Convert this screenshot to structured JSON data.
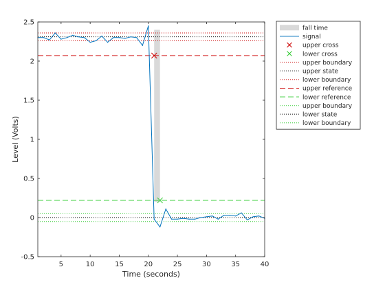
{
  "chart_data": {
    "type": "line",
    "title": "",
    "xlabel": "Time (seconds)",
    "ylabel": "Level (Volts)",
    "xlim": [
      1,
      40
    ],
    "ylim": [
      -0.5,
      2.5
    ],
    "xticks": [
      5,
      10,
      15,
      20,
      25,
      30,
      35,
      40
    ],
    "yticks": [
      -0.5,
      0,
      0.5,
      1,
      1.5,
      2,
      2.5
    ],
    "ytick_labels": [
      "-0.5",
      "0",
      "0.5",
      "1",
      "1.5",
      "2",
      "2.5"
    ],
    "grid": false,
    "legend_position": "outside-right",
    "series": [
      {
        "name": "signal",
        "color": "#0072bd",
        "x": [
          1,
          2,
          3,
          4,
          5,
          6,
          7,
          8,
          9,
          10,
          11,
          12,
          13,
          14,
          15,
          16,
          17,
          18,
          19,
          20,
          21,
          22,
          23,
          24,
          25,
          26,
          27,
          28,
          29,
          30,
          31,
          32,
          33,
          34,
          35,
          36,
          37,
          38,
          39,
          40
        ],
        "y": [
          2.3,
          2.3,
          2.27,
          2.36,
          2.28,
          2.3,
          2.33,
          2.31,
          2.3,
          2.24,
          2.26,
          2.32,
          2.24,
          2.3,
          2.3,
          2.29,
          2.31,
          2.3,
          2.2,
          2.45,
          -0.02,
          -0.12,
          0.11,
          -0.02,
          -0.02,
          -0.01,
          -0.02,
          -0.02,
          0.0,
          0.01,
          0.02,
          -0.02,
          0.03,
          0.03,
          0.02,
          0.06,
          -0.03,
          0.01,
          0.02,
          -0.01
        ]
      }
    ],
    "fall_time": {
      "name": "fall time",
      "x_start": 21.0,
      "x_end": 22.0,
      "color": "#d9d9d9"
    },
    "markers": [
      {
        "name": "upper cross",
        "symbol": "x",
        "color": "#cc0000",
        "x": 21.0,
        "y": 2.07
      },
      {
        "name": "lower cross",
        "symbol": "x",
        "color": "#33cc33",
        "x": 22.0,
        "y": 0.22
      }
    ],
    "reference_lines": [
      {
        "name": "upper boundary",
        "y": 2.36,
        "style": "dotted",
        "color": "#cc0000"
      },
      {
        "name": "upper state",
        "y": 2.31,
        "style": "dotted",
        "color": "#000000"
      },
      {
        "name": "lower boundary",
        "y": 2.26,
        "style": "dotted",
        "color": "#cc0000"
      },
      {
        "name": "upper reference",
        "y": 2.07,
        "style": "dashed",
        "color": "#cc0000"
      },
      {
        "name": "lower reference",
        "y": 0.22,
        "style": "dashed",
        "color": "#33cc33"
      },
      {
        "name": "upper boundary",
        "y": 0.05,
        "style": "dotted",
        "color": "#33cc33"
      },
      {
        "name": "lower state",
        "y": 0.0,
        "style": "dotted",
        "color": "#000000"
      },
      {
        "name": "lower boundary",
        "y": -0.05,
        "style": "dotted",
        "color": "#33cc33"
      }
    ],
    "legend": [
      {
        "label": "fall time",
        "kind": "patch",
        "color": "#d9d9d9"
      },
      {
        "label": "signal",
        "kind": "line",
        "style": "solid",
        "color": "#0072bd"
      },
      {
        "label": "upper cross",
        "kind": "marker",
        "color": "#cc0000"
      },
      {
        "label": "lower cross",
        "kind": "marker",
        "color": "#33cc33"
      },
      {
        "label": "upper boundary",
        "kind": "line",
        "style": "dotted",
        "color": "#cc0000"
      },
      {
        "label": "upper state",
        "kind": "line",
        "style": "dotted",
        "color": "#000000"
      },
      {
        "label": "lower boundary",
        "kind": "line",
        "style": "dotted",
        "color": "#cc0000"
      },
      {
        "label": "upper reference",
        "kind": "line",
        "style": "dashed",
        "color": "#cc0000"
      },
      {
        "label": "lower reference",
        "kind": "line",
        "style": "dashed",
        "color": "#33cc33"
      },
      {
        "label": "upper boundary",
        "kind": "line",
        "style": "dotted",
        "color": "#33cc33"
      },
      {
        "label": "lower state",
        "kind": "line",
        "style": "dotted",
        "color": "#000000"
      },
      {
        "label": "lower boundary",
        "kind": "line",
        "style": "dotted",
        "color": "#33cc33"
      }
    ]
  }
}
